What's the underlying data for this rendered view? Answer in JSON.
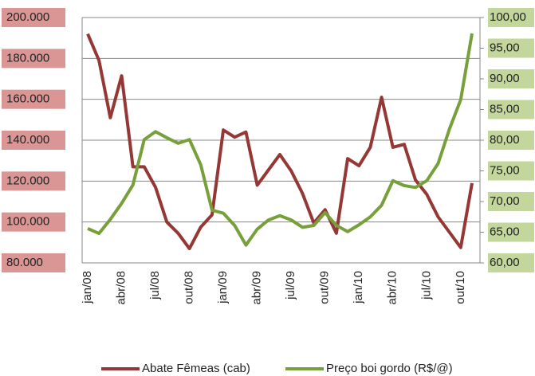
{
  "chart_data": {
    "type": "line",
    "categories": [
      "jan/08",
      null,
      null,
      "abr/08",
      null,
      null,
      "jul/08",
      null,
      null,
      "out/08",
      null,
      null,
      "jan/09",
      null,
      null,
      "abr/09",
      null,
      null,
      "jul/09",
      null,
      null,
      "out/09",
      null,
      null,
      "jan/10",
      null,
      null,
      "abr/10",
      null,
      null,
      "jul/10",
      null,
      null,
      "out/10",
      null
    ],
    "series": [
      {
        "name": "Abate Fêmeas (cab)",
        "color": "#953735",
        "values": [
          192000,
          179000,
          151000,
          171500,
          127000,
          127000,
          117000,
          100000,
          94500,
          87000,
          97500,
          103500,
          145000,
          141500,
          144000,
          118000,
          125500,
          133000,
          125000,
          114000,
          99500,
          106000,
          94500,
          131000,
          127500,
          136500,
          161000,
          136500,
          138000,
          120500,
          113500,
          102500,
          95000,
          87500,
          119000
        ]
      },
      {
        "name": "Preço boi gordo (R$/@)",
        "color": "#77a03a",
        "axis": "y2",
        "values": [
          65.6,
          64.8,
          67.1,
          69.7,
          72.7,
          80.1,
          81.4,
          80.4,
          79.5,
          80.1,
          76.0,
          68.6,
          68.1,
          66.1,
          62.9,
          65.5,
          67.0,
          67.7,
          67.0,
          65.8,
          66.1,
          68.2,
          66.1,
          65.1,
          66.2,
          67.5,
          69.4,
          73.4,
          72.6,
          72.3,
          73.4,
          76.2,
          81.8,
          86.6,
          97.4
        ]
      }
    ],
    "ylim": [
      80000,
      200000
    ],
    "yticks": [
      {
        "value": 80000,
        "label": "80.000"
      },
      {
        "value": 100000,
        "label": "100.000"
      },
      {
        "value": 120000,
        "label": "120.000"
      },
      {
        "value": 140000,
        "label": "140.000"
      },
      {
        "value": 160000,
        "label": "160.000"
      },
      {
        "value": 180000,
        "label": "180.000"
      },
      {
        "value": 200000,
        "label": "200.000"
      }
    ],
    "y2lim": [
      60,
      100
    ],
    "y2ticks": [
      {
        "value": 60,
        "label": "60,00"
      },
      {
        "value": 65,
        "label": "65,00"
      },
      {
        "value": 70,
        "label": "70,00"
      },
      {
        "value": 75,
        "label": "75,00"
      },
      {
        "value": 80,
        "label": "80,00"
      },
      {
        "value": 85,
        "label": "85,00"
      },
      {
        "value": 90,
        "label": "90,00"
      },
      {
        "value": 95,
        "label": "95,00"
      },
      {
        "value": 100,
        "label": "100,00"
      }
    ],
    "ytick_background": "#d99694",
    "y2tick_background": "#c3d69b",
    "grid": true
  }
}
